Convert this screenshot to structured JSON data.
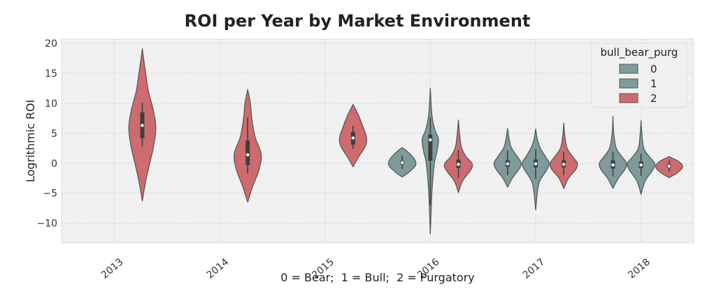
{
  "chart_data": {
    "type": "violin",
    "title": "ROI per Year by Market Environment",
    "xlabel": "0 = Bear;  1 = Bull;  2 = Purgatory",
    "ylabel": "Logrithmic ROI",
    "ylim": [
      -13.3,
      20.7
    ],
    "yticks": [
      -10,
      -5,
      0,
      5,
      10,
      15,
      20
    ],
    "categories": [
      "2013",
      "2014",
      "2015",
      "2016",
      "2017",
      "2018"
    ],
    "grid": true,
    "legend": {
      "title": "bull_bear_purg",
      "position": "top-right",
      "entries": [
        {
          "label": "0",
          "color": "#7e9a9a"
        },
        {
          "label": "1",
          "color": "#7e9a9a"
        },
        {
          "label": "2",
          "color": "#cd6b6e"
        }
      ]
    },
    "series_colors": {
      "0": "#7e9a9a",
      "1": "#7e9a9a",
      "2": "#cd6b6e"
    },
    "violins": [
      {
        "category": "2013",
        "group": "2",
        "min": -6.3,
        "max": 19.1,
        "q1": 4.2,
        "median": 6.3,
        "q3": 8.5,
        "whisker_low": 2.8,
        "whisker_high": 10.1,
        "profile": [
          [
            -6.3,
            0
          ],
          [
            -3,
            0.25
          ],
          [
            0,
            0.55
          ],
          [
            3,
            0.85
          ],
          [
            6,
            1.0
          ],
          [
            9,
            0.8
          ],
          [
            12,
            0.45
          ],
          [
            15,
            0.25
          ],
          [
            17,
            0.12
          ],
          [
            19.1,
            0
          ]
        ]
      },
      {
        "category": "2014",
        "group": "2",
        "min": -6.5,
        "max": 12.3,
        "q1": -0.3,
        "median": 1.4,
        "q3": 3.8,
        "whisker_low": -1.7,
        "whisker_high": 7.6,
        "profile": [
          [
            -6.5,
            0
          ],
          [
            -4,
            0.35
          ],
          [
            -1,
            0.85
          ],
          [
            1.5,
            1.0
          ],
          [
            4,
            0.6
          ],
          [
            6,
            0.4
          ],
          [
            8,
            0.28
          ],
          [
            10,
            0.2
          ],
          [
            12.3,
            0
          ]
        ]
      },
      {
        "category": "2015",
        "group": "2",
        "min": -0.6,
        "max": 9.8,
        "q1": 3.1,
        "median": 4.2,
        "q3": 5.2,
        "whisker_low": 2.4,
        "whisker_high": 6.2,
        "profile": [
          [
            -0.6,
            0
          ],
          [
            1,
            0.4
          ],
          [
            2.8,
            0.9
          ],
          [
            4.2,
            1.0
          ],
          [
            6,
            0.75
          ],
          [
            8,
            0.4
          ],
          [
            9.8,
            0
          ]
        ]
      },
      {
        "category": "2016",
        "group": "0",
        "min": -2.3,
        "max": 2.6,
        "q1": -0.2,
        "median": 0.1,
        "q3": 0.4,
        "whisker_low": -1.0,
        "whisker_high": 1.3,
        "profile": [
          [
            -2.3,
            0
          ],
          [
            -1.5,
            0.5
          ],
          [
            -0.5,
            0.95
          ],
          [
            0.2,
            1.0
          ],
          [
            1,
            0.8
          ],
          [
            2,
            0.35
          ],
          [
            2.6,
            0
          ]
        ]
      },
      {
        "category": "2016",
        "group": "1",
        "min": -11.8,
        "max": 12.5,
        "q1": 0.4,
        "median": 3.9,
        "q3": 4.8,
        "whisker_low": -7.0,
        "whisker_high": 7.6,
        "profile": [
          [
            -11.8,
            0
          ],
          [
            -8,
            0.06
          ],
          [
            -4,
            0.14
          ],
          [
            0,
            0.3
          ],
          [
            2,
            0.5
          ],
          [
            4,
            0.6
          ],
          [
            5.5,
            0.35
          ],
          [
            8,
            0.12
          ],
          [
            12.5,
            0
          ]
        ]
      },
      {
        "category": "2016",
        "group": "2",
        "min": -4.9,
        "max": 7.2,
        "q1": -0.8,
        "median": -0.2,
        "q3": 0.6,
        "whisker_low": -2.5,
        "whisker_high": 2.2,
        "profile": [
          [
            -4.9,
            0
          ],
          [
            -3,
            0.3
          ],
          [
            -1,
            0.95
          ],
          [
            0,
            1.0
          ],
          [
            1,
            0.6
          ],
          [
            2.5,
            0.25
          ],
          [
            4.5,
            0.1
          ],
          [
            7.2,
            0
          ]
        ]
      },
      {
        "category": "2017",
        "group": "0",
        "min": -4.0,
        "max": 5.8,
        "q1": -0.6,
        "median": -0.1,
        "q3": 0.5,
        "whisker_low": -2.0,
        "whisker_high": 2.1,
        "profile": [
          [
            -4,
            0
          ],
          [
            -2.5,
            0.35
          ],
          [
            -1,
            0.85
          ],
          [
            0,
            1.0
          ],
          [
            1,
            0.75
          ],
          [
            2.5,
            0.3
          ],
          [
            4,
            0.12
          ],
          [
            5.8,
            0
          ]
        ]
      },
      {
        "category": "2017",
        "group": "1",
        "min": -7.8,
        "max": 5.7,
        "q1": -0.7,
        "median": -0.1,
        "q3": 0.6,
        "whisker_low": -2.6,
        "whisker_high": 2.3,
        "profile": [
          [
            -7.8,
            0
          ],
          [
            -5,
            0.12
          ],
          [
            -3,
            0.3
          ],
          [
            -1,
            0.85
          ],
          [
            0,
            1.0
          ],
          [
            1,
            0.75
          ],
          [
            2.5,
            0.35
          ],
          [
            4,
            0.12
          ],
          [
            5.7,
            0
          ]
        ]
      },
      {
        "category": "2017",
        "group": "2",
        "min": -4.2,
        "max": 6.7,
        "q1": -0.7,
        "median": -0.2,
        "q3": 0.5,
        "whisker_low": -2.0,
        "whisker_high": 1.9,
        "profile": [
          [
            -4.2,
            0
          ],
          [
            -2.5,
            0.35
          ],
          [
            -1,
            0.9
          ],
          [
            0,
            1.0
          ],
          [
            1,
            0.7
          ],
          [
            2.5,
            0.25
          ],
          [
            4.5,
            0.08
          ],
          [
            6.7,
            0
          ]
        ]
      },
      {
        "category": "2018",
        "group": "0",
        "min": -4.2,
        "max": 7.8,
        "q1": -0.9,
        "median": -0.3,
        "q3": 0.5,
        "whisker_low": -2.2,
        "whisker_high": 1.9,
        "profile": [
          [
            -4.2,
            0
          ],
          [
            -2.5,
            0.4
          ],
          [
            -1,
            0.9
          ],
          [
            0,
            1.0
          ],
          [
            1,
            0.7
          ],
          [
            2.5,
            0.25
          ],
          [
            5,
            0.06
          ],
          [
            7.8,
            0
          ]
        ]
      },
      {
        "category": "2018",
        "group": "1",
        "min": -5.2,
        "max": 7.1,
        "q1": -0.8,
        "median": -0.3,
        "q3": 0.3,
        "whisker_low": -2.1,
        "whisker_high": 1.6,
        "profile": [
          [
            -5.2,
            0
          ],
          [
            -3,
            0.3
          ],
          [
            -1,
            0.9
          ],
          [
            0,
            1.0
          ],
          [
            1,
            0.65
          ],
          [
            2.5,
            0.2
          ],
          [
            5,
            0.06
          ],
          [
            7.1,
            0
          ]
        ]
      },
      {
        "category": "2018",
        "group": "2",
        "min": -2.4,
        "max": 1.1,
        "q1": -0.8,
        "median": -0.5,
        "q3": -0.2,
        "whisker_low": -1.4,
        "whisker_high": 0.5,
        "profile": [
          [
            -2.4,
            0
          ],
          [
            -1.6,
            0.6
          ],
          [
            -0.6,
            1.0
          ],
          [
            0.3,
            0.7
          ],
          [
            1.1,
            0
          ]
        ]
      }
    ]
  }
}
